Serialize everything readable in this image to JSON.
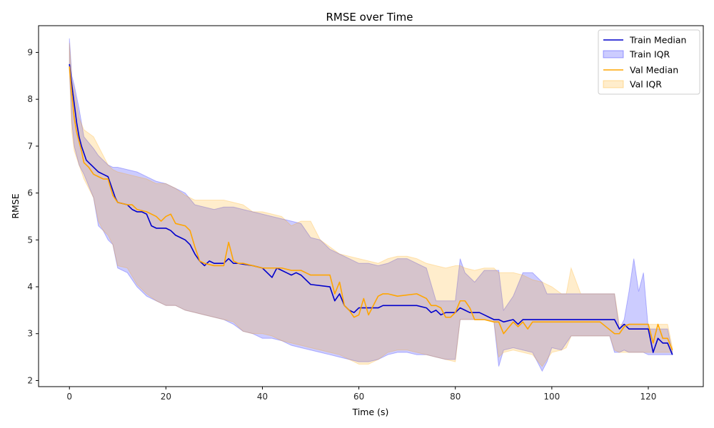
{
  "chart_data": {
    "type": "line",
    "title": "RMSE over Time",
    "xlabel": "Time (s)",
    "ylabel": "RMSE",
    "xlim": [
      -6.4,
      131.4
    ],
    "ylim": [
      1.87,
      9.57
    ],
    "xticks": [
      0,
      20,
      40,
      60,
      80,
      100,
      120
    ],
    "yticks": [
      2,
      3,
      4,
      5,
      6,
      7,
      8,
      9
    ],
    "grid": false,
    "legend_position": "top-right",
    "colors": {
      "train": "#0000cc",
      "train_fill": "#0000ff",
      "val": "#ffa500",
      "val_fill": "#ffa500"
    },
    "series": [
      {
        "name": "Train Median",
        "kind": "line",
        "color": "#0000cc",
        "x": [
          0,
          0.5,
          1,
          1.5,
          2,
          2.5,
          3,
          3.5,
          4,
          5,
          6,
          7,
          8,
          9,
          9.5,
          10,
          12,
          13,
          14,
          15,
          16,
          17,
          18,
          20,
          21,
          22,
          23,
          24,
          25,
          26,
          27,
          28,
          29,
          30,
          32,
          33,
          34,
          35,
          38,
          40,
          42,
          43,
          44,
          45,
          46,
          47,
          48,
          50,
          54,
          55,
          56,
          57,
          58,
          59,
          60,
          62,
          64,
          65,
          66,
          67,
          72,
          74,
          75,
          76,
          77,
          78,
          79,
          80,
          81,
          82,
          83,
          84,
          85,
          86,
          87,
          88,
          89,
          90,
          92,
          93,
          94,
          95,
          96,
          100,
          102,
          103,
          105,
          110,
          113,
          114,
          115,
          116,
          118,
          120,
          121,
          122,
          123,
          124,
          125
        ],
        "y": [
          8.75,
          8.3,
          7.9,
          7.5,
          7.2,
          7.0,
          6.85,
          6.7,
          6.65,
          6.55,
          6.45,
          6.4,
          6.35,
          6.05,
          5.9,
          5.8,
          5.75,
          5.65,
          5.6,
          5.6,
          5.55,
          5.3,
          5.25,
          5.25,
          5.2,
          5.1,
          5.05,
          5.0,
          4.9,
          4.7,
          4.55,
          4.45,
          4.55,
          4.5,
          4.5,
          4.6,
          4.5,
          4.5,
          4.45,
          4.4,
          4.2,
          4.4,
          4.35,
          4.3,
          4.25,
          4.3,
          4.25,
          4.05,
          4.0,
          3.7,
          3.85,
          3.6,
          3.5,
          3.45,
          3.55,
          3.55,
          3.55,
          3.6,
          3.6,
          3.6,
          3.6,
          3.55,
          3.45,
          3.5,
          3.4,
          3.45,
          3.45,
          3.45,
          3.55,
          3.5,
          3.45,
          3.45,
          3.45,
          3.4,
          3.35,
          3.3,
          3.3,
          3.25,
          3.3,
          3.2,
          3.3,
          3.3,
          3.3,
          3.3,
          3.3,
          3.3,
          3.3,
          3.3,
          3.3,
          3.1,
          3.2,
          3.1,
          3.1,
          3.1,
          2.6,
          2.9,
          2.8,
          2.8,
          2.55
        ]
      },
      {
        "name": "Train IQR",
        "kind": "band",
        "color": "#0000ff",
        "x": [
          0,
          0.5,
          1,
          2,
          3,
          5,
          6,
          7,
          8,
          9,
          10,
          12,
          14,
          16,
          18,
          20,
          22,
          24,
          26,
          28,
          30,
          32,
          34,
          36,
          38,
          40,
          42,
          44,
          46,
          48,
          50,
          52,
          54,
          56,
          58,
          60,
          62,
          64,
          66,
          68,
          70,
          72,
          74,
          76,
          78,
          80,
          81,
          82,
          84,
          86,
          88,
          89,
          90,
          92,
          94,
          96,
          98,
          99,
          100,
          102,
          104,
          106,
          108,
          110,
          112,
          113,
          114,
          115,
          116,
          117,
          118,
          119,
          120,
          121,
          122,
          123,
          124,
          125
        ],
        "low": [
          8.6,
          7.5,
          7.0,
          6.6,
          6.4,
          5.9,
          5.3,
          5.2,
          5.0,
          4.9,
          4.4,
          4.3,
          4.0,
          3.8,
          3.7,
          3.6,
          3.6,
          3.5,
          3.45,
          3.4,
          3.35,
          3.3,
          3.2,
          3.05,
          3.0,
          2.9,
          2.9,
          2.85,
          2.75,
          2.7,
          2.65,
          2.6,
          2.55,
          2.5,
          2.45,
          2.4,
          2.4,
          2.45,
          2.55,
          2.6,
          2.6,
          2.55,
          2.55,
          2.5,
          2.45,
          2.45,
          3.3,
          3.3,
          3.3,
          3.3,
          3.25,
          2.3,
          2.65,
          2.7,
          2.65,
          2.6,
          2.2,
          2.4,
          2.7,
          2.65,
          2.95,
          2.95,
          2.95,
          2.95,
          2.95,
          2.6,
          2.6,
          2.65,
          2.6,
          2.6,
          2.6,
          2.6,
          2.55,
          2.55,
          2.55,
          2.55,
          2.55,
          2.55
        ],
        "high": [
          9.3,
          8.5,
          8.3,
          7.8,
          7.2,
          6.95,
          6.8,
          6.7,
          6.6,
          6.55,
          6.55,
          6.5,
          6.45,
          6.35,
          6.25,
          6.2,
          6.1,
          6.0,
          5.75,
          5.7,
          5.65,
          5.7,
          5.7,
          5.65,
          5.6,
          5.55,
          5.5,
          5.45,
          5.4,
          5.35,
          5.05,
          5.0,
          4.8,
          4.7,
          4.6,
          4.5,
          4.5,
          4.45,
          4.5,
          4.6,
          4.6,
          4.5,
          4.4,
          3.7,
          3.7,
          3.7,
          4.6,
          4.3,
          4.1,
          4.35,
          4.35,
          4.35,
          3.5,
          3.8,
          4.3,
          4.3,
          4.1,
          3.85,
          3.85,
          3.85,
          3.85,
          3.85,
          3.85,
          3.85,
          3.85,
          3.85,
          3.1,
          3.3,
          3.9,
          4.6,
          3.9,
          4.3,
          3.1,
          3.1,
          3.1,
          3.1,
          3.1,
          2.6
        ]
      },
      {
        "name": "Val Median",
        "kind": "line",
        "color": "#ffa500",
        "x": [
          0,
          0.5,
          1,
          1.5,
          2,
          2.5,
          3,
          4,
          5,
          6,
          7,
          8,
          9,
          10,
          12,
          13,
          14,
          16,
          18,
          19,
          20,
          21,
          22,
          24,
          25,
          26,
          27,
          28,
          30,
          32,
          33,
          34,
          35,
          36,
          38,
          40,
          42,
          44,
          46,
          48,
          50,
          54,
          55,
          56,
          57,
          58,
          59,
          60,
          61,
          62,
          64,
          65,
          66,
          68,
          72,
          74,
          75,
          76,
          77,
          78,
          79,
          80,
          81,
          82,
          83,
          84,
          86,
          88,
          89,
          90,
          92,
          93,
          94,
          95,
          96,
          100,
          102,
          103,
          105,
          110,
          113,
          114,
          115,
          116,
          118,
          120,
          121,
          122,
          123,
          124,
          125
        ],
        "y": [
          8.7,
          8.1,
          7.6,
          7.3,
          7.1,
          6.9,
          6.65,
          6.55,
          6.4,
          6.35,
          6.3,
          6.3,
          5.95,
          5.8,
          5.75,
          5.75,
          5.65,
          5.6,
          5.5,
          5.4,
          5.5,
          5.55,
          5.35,
          5.3,
          5.2,
          4.85,
          4.55,
          4.5,
          4.45,
          4.45,
          4.95,
          4.55,
          4.5,
          4.5,
          4.45,
          4.4,
          4.4,
          4.4,
          4.35,
          4.35,
          4.25,
          4.25,
          3.85,
          4.1,
          3.6,
          3.5,
          3.35,
          3.4,
          3.75,
          3.4,
          3.8,
          3.85,
          3.85,
          3.8,
          3.85,
          3.75,
          3.6,
          3.6,
          3.55,
          3.35,
          3.35,
          3.45,
          3.7,
          3.7,
          3.55,
          3.3,
          3.3,
          3.25,
          3.25,
          3.0,
          3.25,
          3.15,
          3.25,
          3.1,
          3.25,
          3.25,
          3.25,
          3.25,
          3.25,
          3.25,
          3.0,
          3.0,
          3.15,
          3.2,
          3.2,
          3.2,
          2.8,
          3.2,
          2.9,
          2.9,
          2.65
        ]
      },
      {
        "name": "Val IQR",
        "kind": "band",
        "color": "#ffa500",
        "x": [
          0,
          0.5,
          1,
          2,
          3,
          5,
          6,
          7,
          8,
          9,
          10,
          12,
          14,
          16,
          18,
          20,
          22,
          24,
          26,
          28,
          30,
          32,
          34,
          36,
          38,
          40,
          42,
          44,
          46,
          48,
          50,
          52,
          54,
          56,
          58,
          60,
          62,
          64,
          66,
          68,
          70,
          72,
          74,
          76,
          78,
          80,
          81,
          82,
          84,
          86,
          88,
          89,
          90,
          92,
          94,
          96,
          98,
          100,
          102,
          103,
          104,
          106,
          108,
          110,
          112,
          113,
          114,
          115,
          116,
          118,
          120,
          121,
          122,
          123,
          124,
          125
        ],
        "low": [
          8.6,
          7.3,
          6.9,
          6.6,
          6.3,
          5.9,
          5.4,
          5.2,
          5.1,
          4.9,
          4.45,
          4.4,
          4.05,
          3.85,
          3.7,
          3.6,
          3.6,
          3.5,
          3.45,
          3.4,
          3.35,
          3.3,
          3.25,
          3.05,
          3.0,
          3.0,
          2.95,
          2.85,
          2.8,
          2.75,
          2.7,
          2.65,
          2.6,
          2.55,
          2.45,
          2.35,
          2.35,
          2.45,
          2.6,
          2.65,
          2.65,
          2.6,
          2.55,
          2.5,
          2.45,
          2.4,
          3.3,
          3.3,
          3.3,
          3.3,
          3.25,
          2.5,
          2.6,
          2.65,
          2.6,
          2.55,
          2.3,
          2.6,
          2.65,
          2.7,
          2.95,
          2.95,
          2.95,
          2.95,
          2.95,
          2.65,
          2.6,
          2.6,
          2.6,
          2.6,
          2.6,
          2.6,
          2.6,
          2.6,
          2.6,
          2.6
        ],
        "high": [
          9.2,
          8.4,
          8.2,
          7.6,
          7.35,
          7.2,
          7.0,
          6.8,
          6.6,
          6.5,
          6.45,
          6.4,
          6.35,
          6.3,
          6.2,
          6.2,
          6.1,
          5.95,
          5.85,
          5.85,
          5.85,
          5.85,
          5.8,
          5.75,
          5.6,
          5.6,
          5.55,
          5.5,
          5.3,
          5.4,
          5.4,
          5.0,
          4.85,
          4.7,
          4.65,
          4.6,
          4.55,
          4.5,
          4.6,
          4.65,
          4.65,
          4.6,
          4.5,
          4.45,
          4.4,
          4.45,
          4.45,
          4.4,
          4.35,
          4.4,
          4.4,
          4.3,
          4.3,
          4.3,
          4.25,
          4.15,
          4.1,
          4.0,
          3.85,
          3.85,
          4.4,
          3.85,
          3.85,
          3.85,
          3.85,
          3.85,
          3.2,
          3.2,
          3.2,
          3.2,
          3.2,
          3.2,
          3.2,
          3.2,
          3.2,
          2.7
        ]
      }
    ]
  }
}
